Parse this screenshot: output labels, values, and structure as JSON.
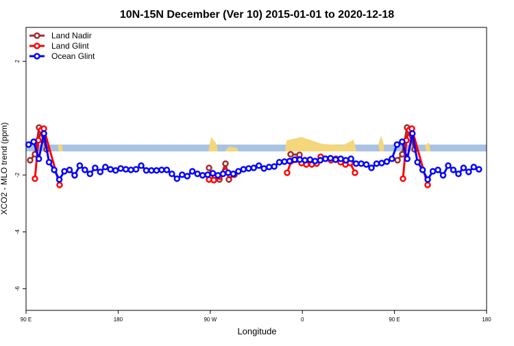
{
  "chart_data": {
    "type": "line",
    "title": "10N-15N December (Ver 10)   2015-01-01 to 2020-12-18",
    "x_label": "Longitude",
    "y_label": "XCO2 - MLO trend (ppm)",
    "xlim": [
      90,
      540
    ],
    "ylim": [
      -6.76,
      3.19
    ],
    "xticks": [
      {
        "value": 90,
        "label": "90 E"
      },
      180,
      {
        "value": 270,
        "label": "90 W"
      },
      {
        "value": 360,
        "label": "0"
      },
      {
        "value": 450,
        "label": "90 E"
      },
      {
        "value": 540,
        "label": "180"
      }
    ],
    "yticks": [
      -6,
      -4,
      -2,
      2
    ],
    "legend": "top-left",
    "series": [
      {
        "name": "Land Nadir",
        "color": "#a52a2a",
        "x": [
          94,
          98.7,
          102.7,
          110.1,
          null,
          268.8,
          273.5,
          278.9,
          284.9,
          288.2,
          293.6,
          null,
          348.5,
          357.2,
          null,
          453,
          457.6,
          462.3,
          469.7
        ],
        "values": [
          -1.48,
          -1.27,
          -0.33,
          -1.1,
          null,
          -1.75,
          -2.18,
          -2.16,
          -1.6,
          -2.16,
          -1.99,
          null,
          -1.27,
          -1.29,
          null,
          -1.48,
          -1.27,
          -0.33,
          -1.1
        ]
      },
      {
        "name": "Land Glint",
        "color": "#ff0000",
        "x": [
          98.7,
          102.1,
          104.8,
          107.4,
          122.8,
          null,
          268.8,
          273.5,
          278.9,
          284.9,
          289.6,
          null,
          345.1,
          349.2,
          353.8,
          359.2,
          363.9,
          369.2,
          373.9,
          377.9,
          382.6,
          388,
          392.7,
          397.4,
          402.1,
          406.7,
          411.4,
          null,
          458.3,
          461.7,
          464.3,
          467,
          482.4
        ],
        "values": [
          -2.13,
          -0.78,
          -0.42,
          -0.37,
          -2.35,
          null,
          -2.16,
          -2.18,
          -2.06,
          -1.87,
          -1.99,
          null,
          -1.92,
          -1.51,
          -1.46,
          -1.58,
          -1.63,
          -1.63,
          -1.6,
          -1.36,
          -1.43,
          -1.48,
          -1.43,
          -1.55,
          -1.63,
          -1.58,
          -1.92,
          null,
          -2.13,
          -0.78,
          -0.42,
          -0.37,
          -2.35
        ]
      },
      {
        "name": "Ocean Glint",
        "color": "#0000ff",
        "x": [
          92.5,
          97.5,
          102.5,
          107.5,
          112.5,
          117.5,
          122.5,
          127.5,
          132.5,
          137.5,
          142.5,
          147.5,
          152.5,
          157.5,
          162.5,
          167.5,
          172.5,
          177.5,
          182.5,
          187.5,
          192.5,
          197.5,
          202.5,
          207.5,
          212.5,
          217.5,
          222.5,
          227.5,
          232.5,
          237.5,
          242.5,
          247.5,
          252.5,
          257.5,
          262.5,
          267.5,
          272.5,
          277.5,
          282.5,
          287.5,
          292.5,
          297.5,
          302.5,
          307.5,
          312.5,
          317.5,
          322.5,
          327.5,
          332.5,
          337.5,
          342.5,
          347.5,
          352.5,
          357.5,
          362.5,
          367.5,
          372.5,
          377.5,
          382.5,
          387.5,
          392.5,
          397.5,
          402.5,
          407.5,
          412.5,
          417.5,
          422.5,
          427.5,
          432.5,
          437.5,
          442.5,
          447.5,
          452.5,
          457.5,
          462.5,
          467.5,
          472.5,
          477.5,
          482.5,
          487.5,
          492.5,
          497.5,
          502.5,
          507.5,
          512.5,
          517.5,
          522.5,
          527.5,
          532.5
        ],
        "values": [
          -0.93,
          -0.83,
          -1.43,
          -0.54,
          -1.55,
          -1.82,
          -2.16,
          -1.87,
          -1.82,
          -2.01,
          -1.67,
          -1.82,
          -1.96,
          -1.75,
          -1.89,
          -1.72,
          -1.8,
          -1.84,
          -1.77,
          -1.8,
          -1.82,
          -1.8,
          -1.67,
          -1.84,
          -1.84,
          -1.84,
          -1.82,
          -1.82,
          -1.96,
          -2.13,
          -1.99,
          -2.04,
          -1.87,
          -1.96,
          -2.01,
          -1.99,
          -1.94,
          -2.01,
          -1.96,
          -1.92,
          -1.96,
          -1.87,
          -1.8,
          -1.77,
          -1.75,
          -1.67,
          -1.77,
          -1.72,
          -1.7,
          -1.55,
          -1.53,
          -1.51,
          -1.46,
          -1.46,
          -1.48,
          -1.46,
          -1.51,
          -1.48,
          -1.43,
          -1.41,
          -1.46,
          -1.43,
          -1.48,
          -1.43,
          -1.6,
          -1.6,
          -1.63,
          -1.75,
          -1.6,
          -1.58,
          -1.53,
          -1.43,
          -0.93,
          -0.83,
          -1.43,
          -0.54,
          -1.55,
          -1.82,
          -2.16,
          -1.87,
          -1.82,
          -2.01,
          -1.67,
          -1.82,
          -1.96,
          -1.75,
          -1.89,
          -1.72,
          -1.8
        ]
      }
    ]
  }
}
